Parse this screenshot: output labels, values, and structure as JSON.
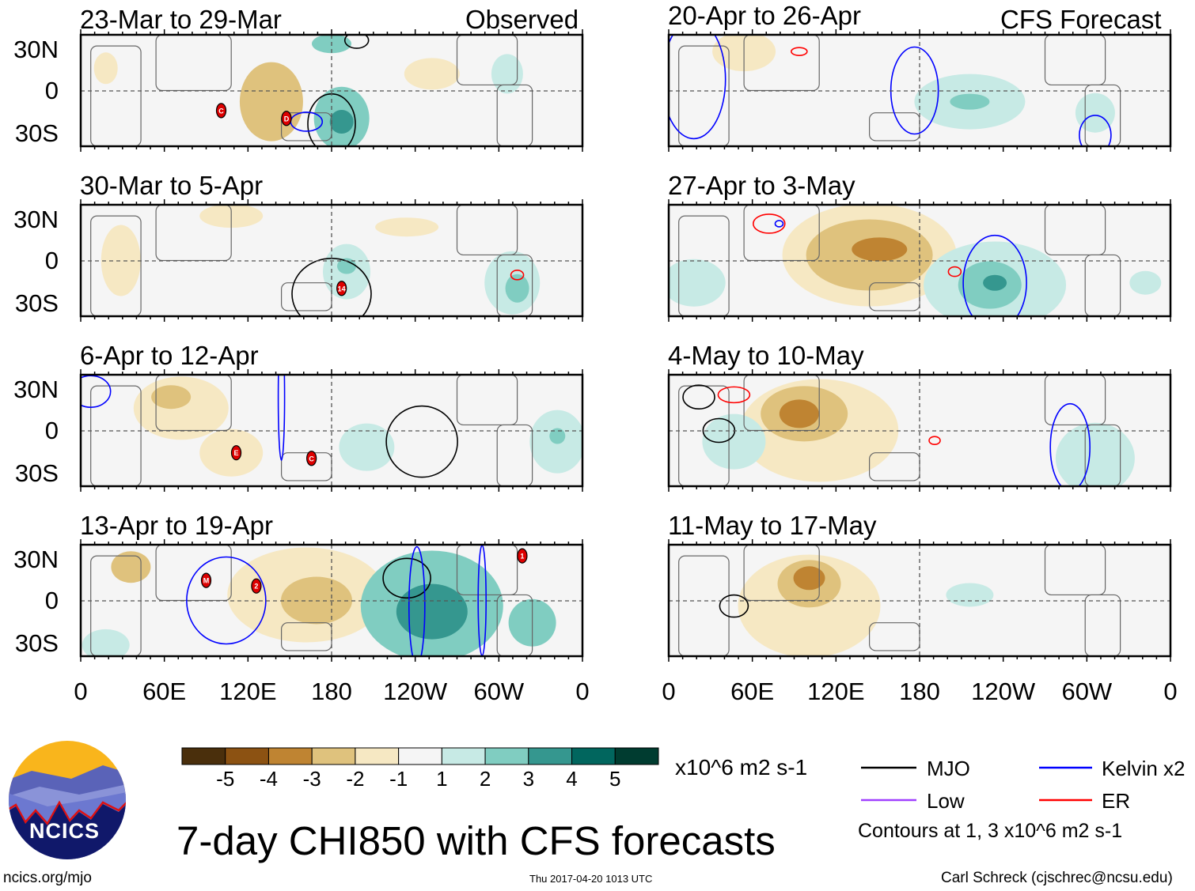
{
  "main_title": "7-day CHI850 with CFS forecasts",
  "columns": {
    "left_label": "Observed",
    "right_label": "CFS Forecast"
  },
  "panels": [
    {
      "column": "left",
      "title": "23-Mar to 29-Mar",
      "storms": [
        "C",
        "D"
      ]
    },
    {
      "column": "left",
      "title": "30-Mar to 5-Apr",
      "storms": [
        "14"
      ]
    },
    {
      "column": "left",
      "title": "6-Apr to 12-Apr",
      "storms": [
        "E",
        "C"
      ]
    },
    {
      "column": "left",
      "title": "13-Apr to 19-Apr",
      "storms": [
        "M",
        "2",
        "1"
      ]
    },
    {
      "column": "right",
      "title": "20-Apr to 26-Apr",
      "storms": []
    },
    {
      "column": "right",
      "title": "27-Apr to 3-May",
      "storms": []
    },
    {
      "column": "right",
      "title": "4-May to 10-May",
      "storms": []
    },
    {
      "column": "right",
      "title": "11-May to 17-May",
      "storms": []
    }
  ],
  "lat_labels": [
    "30N",
    "0",
    "30S"
  ],
  "lon_labels": [
    "0",
    "60E",
    "120E",
    "180",
    "120W",
    "60W",
    "0"
  ],
  "colorbar": {
    "labels": [
      "-5",
      "-4",
      "-3",
      "-2",
      "-1",
      "1",
      "2",
      "3",
      "4",
      "5"
    ],
    "colors": [
      "#4a2f0c",
      "#8c5212",
      "#bf8432",
      "#dfc27d",
      "#f6e8c3",
      "#f5f5f5",
      "#c7eae5",
      "#80cdc1",
      "#35978f",
      "#01665e",
      "#003c30"
    ],
    "units": "x10^6 m2 s-1"
  },
  "legend": [
    {
      "label": "MJO",
      "color": "#000000"
    },
    {
      "label": "Kelvin x2",
      "color": "#0000ff"
    },
    {
      "label": "Low",
      "color": "#a040ff"
    },
    {
      "label": "ER",
      "color": "#ff0000"
    }
  ],
  "contour_note": "Contours at 1, 3 x10^6 m2 s-1",
  "logo_text": "NCICS",
  "footer": {
    "left": "ncics.org/mjo",
    "center": "Thu 2017-04-20 1013 UTC",
    "right": "Carl Schreck (cjschrec@ncsu.edu)"
  },
  "chart_data": {
    "type": "heatmap",
    "title": "7-day CHI850 with CFS forecasts",
    "units": "x10^6 m2 s-1",
    "xlabel": "",
    "ylabel": "",
    "x_ticks": [
      "0",
      "60E",
      "120E",
      "180",
      "120W",
      "60W",
      "0"
    ],
    "y_ticks": [
      "30N",
      "0",
      "30S"
    ],
    "color_levels": [
      -5,
      -4,
      -3,
      -2,
      -1,
      1,
      2,
      3,
      4,
      5
    ],
    "contour_levels": [
      1,
      3
    ],
    "contour_series": [
      "MJO",
      "Kelvin x2",
      "Low",
      "ER"
    ]
  }
}
